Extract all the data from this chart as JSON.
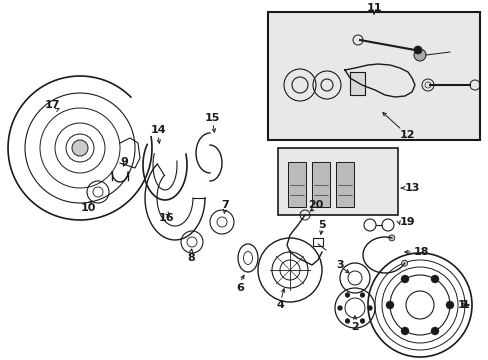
{
  "bg_color": "#ffffff",
  "line_color": "#1a1a1a",
  "shade_color": "#cccccc",
  "inset_bg": "#e8e8e8",
  "figsize": [
    4.89,
    3.6
  ],
  "dpi": 100,
  "xlim": [
    0,
    489
  ],
  "ylim": [
    0,
    360
  ]
}
